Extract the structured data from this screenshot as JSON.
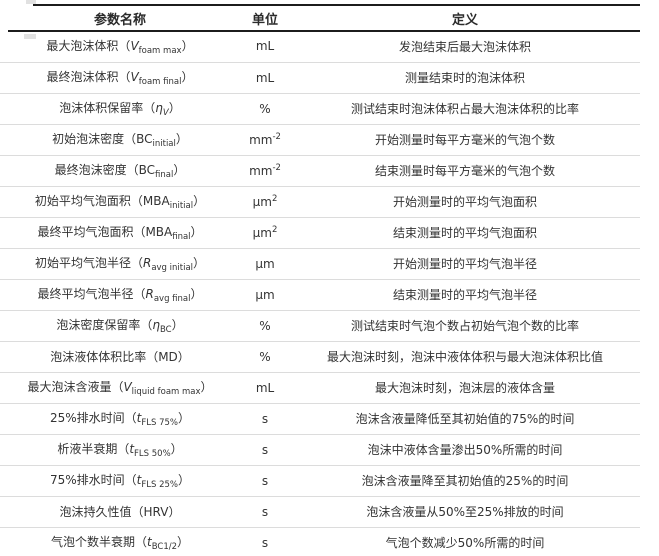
{
  "colors": {
    "text": "#333333",
    "rule_dark": "#1c1c1c",
    "rule_light": "#dcdcdc",
    "background": "#ffffff"
  },
  "table": {
    "headers": [
      "参数名称",
      "单位",
      "定义"
    ],
    "rows": [
      {
        "param": [
          {
            "t": "最大泡沫体积（"
          },
          {
            "t": "V",
            "s": "i"
          },
          {
            "t": "foam max",
            "s": "sub"
          },
          {
            "t": "）"
          }
        ],
        "unit": [
          {
            "t": "mL"
          }
        ],
        "definition": "发泡结束后最大泡沫体积"
      },
      {
        "param": [
          {
            "t": "最终泡沫体积（"
          },
          {
            "t": "V",
            "s": "i"
          },
          {
            "t": "foam final",
            "s": "sub"
          },
          {
            "t": "）"
          }
        ],
        "unit": [
          {
            "t": "mL"
          }
        ],
        "definition": "测量结束时的泡沫体积"
      },
      {
        "param": [
          {
            "t": "泡沫体积保留率（"
          },
          {
            "t": "η",
            "s": "i"
          },
          {
            "t": "V",
            "s": "isub"
          },
          {
            "t": "）"
          }
        ],
        "unit": [
          {
            "t": "%"
          }
        ],
        "definition": "测试结束时泡沫体积占最大泡沫体积的比率"
      },
      {
        "param": [
          {
            "t": "初始泡沫密度（BC"
          },
          {
            "t": "initial",
            "s": "sub"
          },
          {
            "t": "）"
          }
        ],
        "unit": [
          {
            "t": "mm"
          },
          {
            "t": "-2",
            "s": "sup"
          }
        ],
        "definition": "开始测量时每平方毫米的气泡个数"
      },
      {
        "param": [
          {
            "t": "最终泡沫密度（BC"
          },
          {
            "t": "final",
            "s": "sub"
          },
          {
            "t": "）"
          }
        ],
        "unit": [
          {
            "t": "mm"
          },
          {
            "t": "-2",
            "s": "sup"
          }
        ],
        "definition": "结束测量时每平方毫米的气泡个数"
      },
      {
        "param": [
          {
            "t": "初始平均气泡面积（MBA"
          },
          {
            "t": "initial",
            "s": "sub"
          },
          {
            "t": "）"
          }
        ],
        "unit": [
          {
            "t": "μm"
          },
          {
            "t": "2",
            "s": "sup"
          }
        ],
        "definition": "开始测量时的平均气泡面积"
      },
      {
        "param": [
          {
            "t": "最终平均气泡面积（MBA"
          },
          {
            "t": "final",
            "s": "sub"
          },
          {
            "t": "）"
          }
        ],
        "unit": [
          {
            "t": "μm"
          },
          {
            "t": "2",
            "s": "sup"
          }
        ],
        "definition": "结束测量时的平均气泡面积"
      },
      {
        "param": [
          {
            "t": "初始平均气泡半径（"
          },
          {
            "t": "R",
            "s": "i"
          },
          {
            "t": "avg initial",
            "s": "sub"
          },
          {
            "t": "）"
          }
        ],
        "unit": [
          {
            "t": "μm"
          }
        ],
        "definition": "开始测量时的平均气泡半径"
      },
      {
        "param": [
          {
            "t": "最终平均气泡半径（"
          },
          {
            "t": "R",
            "s": "i"
          },
          {
            "t": "avg final",
            "s": "sub"
          },
          {
            "t": "）"
          }
        ],
        "unit": [
          {
            "t": "μm"
          }
        ],
        "definition": "结束测量时的平均气泡半径"
      },
      {
        "param": [
          {
            "t": "泡沫密度保留率（"
          },
          {
            "t": "η",
            "s": "i"
          },
          {
            "t": "BC",
            "s": "sub"
          },
          {
            "t": "）"
          }
        ],
        "unit": [
          {
            "t": "%"
          }
        ],
        "definition": "测试结束时气泡个数占初始气泡个数的比率"
      },
      {
        "param": [
          {
            "t": "泡沫液体体积比率（MD）"
          }
        ],
        "unit": [
          {
            "t": "%"
          }
        ],
        "definition": "最大泡沫时刻，泡沫中液体体积与最大泡沫体积比值"
      },
      {
        "param": [
          {
            "t": "最大泡沫含液量（"
          },
          {
            "t": "V",
            "s": "i"
          },
          {
            "t": "liquid foam max",
            "s": "sub"
          },
          {
            "t": "）"
          }
        ],
        "unit": [
          {
            "t": "mL"
          }
        ],
        "definition": "最大泡沫时刻，泡沫层的液体含量"
      },
      {
        "param": [
          {
            "t": "25%排水时间（"
          },
          {
            "t": "t",
            "s": "i"
          },
          {
            "t": "FLS 75%",
            "s": "sub"
          },
          {
            "t": "）"
          }
        ],
        "unit": [
          {
            "t": "s"
          }
        ],
        "definition": "泡沫含液量降低至其初始值的75%的时间"
      },
      {
        "param": [
          {
            "t": "析液半衰期（"
          },
          {
            "t": "t",
            "s": "i"
          },
          {
            "t": "FLS 50%",
            "s": "sub"
          },
          {
            "t": "）"
          }
        ],
        "unit": [
          {
            "t": "s"
          }
        ],
        "definition": "泡沫中液体含量渗出50%所需的时间"
      },
      {
        "param": [
          {
            "t": "75%排水时间（"
          },
          {
            "t": "t",
            "s": "i"
          },
          {
            "t": "FLS 25%",
            "s": "sub"
          },
          {
            "t": "）"
          }
        ],
        "unit": [
          {
            "t": "s"
          }
        ],
        "definition": "泡沫含液量降至其初始值的25%的时间"
      },
      {
        "param": [
          {
            "t": "泡沫持久性值（HRV）"
          }
        ],
        "unit": [
          {
            "t": "s"
          }
        ],
        "definition": "泡沫含液量从50%至25%排放的时间"
      },
      {
        "param": [
          {
            "t": "气泡个数半衰期（"
          },
          {
            "t": "t",
            "s": "i"
          },
          {
            "t": "BC1/2",
            "s": "sub"
          },
          {
            "t": "）"
          }
        ],
        "unit": [
          {
            "t": "s"
          }
        ],
        "definition": "气泡个数减少50%所需的时间"
      }
    ]
  }
}
